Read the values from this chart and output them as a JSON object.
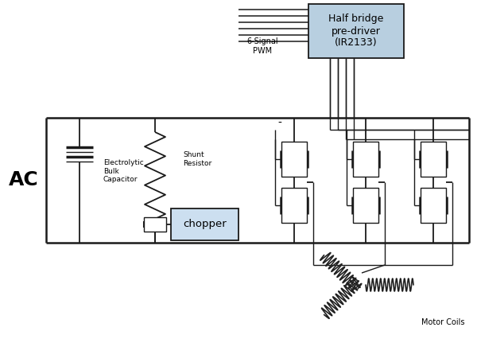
{
  "bg_color": "#ffffff",
  "line_color": "#1a1a1a",
  "box_fill_ir": "#b8cfe0",
  "box_fill_chopper": "#ccdff0",
  "figsize": [
    6.0,
    4.26
  ],
  "dpi": 100,
  "ir2133_text": "Half bridge\npre-driver\n(IR2133)",
  "chopper_text": "chopper",
  "ac_text": "AC",
  "cap_text": "Electrolytic\nBulk\nCapacitor",
  "resistor_text": "Shunt\nResistor",
  "pwm_text": "6-Signal\nPWM",
  "motor_text": "Motor Coils"
}
